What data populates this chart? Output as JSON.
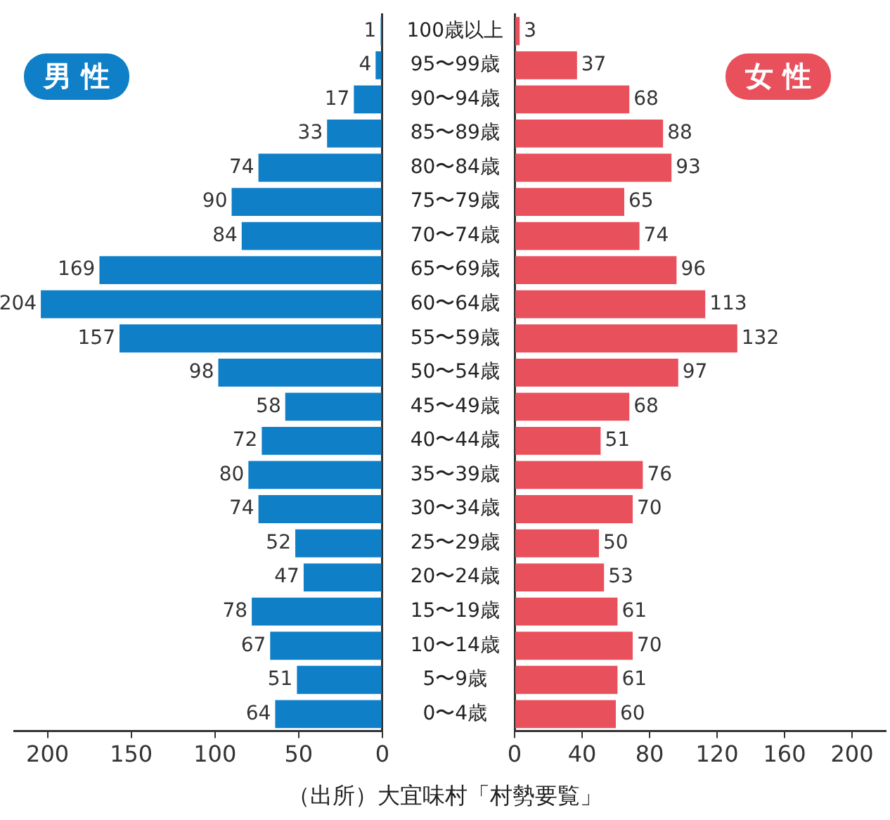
{
  "chart_data": [
    {
      "type": "bar",
      "orientation": "horizontal",
      "title": "男 性",
      "tick_labels": "x",
      "categories": [
        null,
        null,
        null,
        null,
        null,
        null,
        null,
        null,
        null,
        null,
        null,
        null,
        null,
        null,
        null,
        null,
        null,
        null,
        null,
        null,
        null
      ],
      "values": [
        1,
        4,
        17,
        33,
        74,
        90,
        84,
        169,
        204,
        157,
        98,
        58,
        72,
        80,
        74,
        52,
        47,
        78,
        67,
        51,
        64
      ],
      "color": "#0f7fc8",
      "xlim": [
        220,
        0
      ],
      "xticks": [
        200,
        150,
        100,
        50,
        0
      ],
      "data_labels": true
    },
    {
      "type": "bar",
      "orientation": "horizontal",
      "title": "女 性",
      "categories": [
        "100歳以上",
        "95〜99歳",
        "90〜94歳",
        "85〜89歳",
        "80〜84歳",
        "75〜79歳",
        "70〜74歳",
        "65〜69歳",
        "60〜64歳",
        "55〜59歳",
        "50〜54歳",
        "45〜49歳",
        "40〜44歳",
        "35〜39歳",
        "30〜34歳",
        "25〜29歳",
        "20〜24歳",
        "15〜19歳",
        "10〜14歳",
        "5〜9歳",
        "0〜4歳"
      ],
      "values": [
        3,
        37,
        68,
        88,
        93,
        65,
        74,
        96,
        113,
        132,
        97,
        68,
        51,
        76,
        70,
        50,
        53,
        61,
        70,
        61,
        60
      ],
      "color": "#e8505c",
      "xlim": [
        0,
        220
      ],
      "xticks": [
        0,
        40,
        80,
        120,
        160,
        200
      ],
      "data_labels": true,
      "annotations": [
        "（出所）大宜味村「村勢要覧」"
      ]
    }
  ]
}
